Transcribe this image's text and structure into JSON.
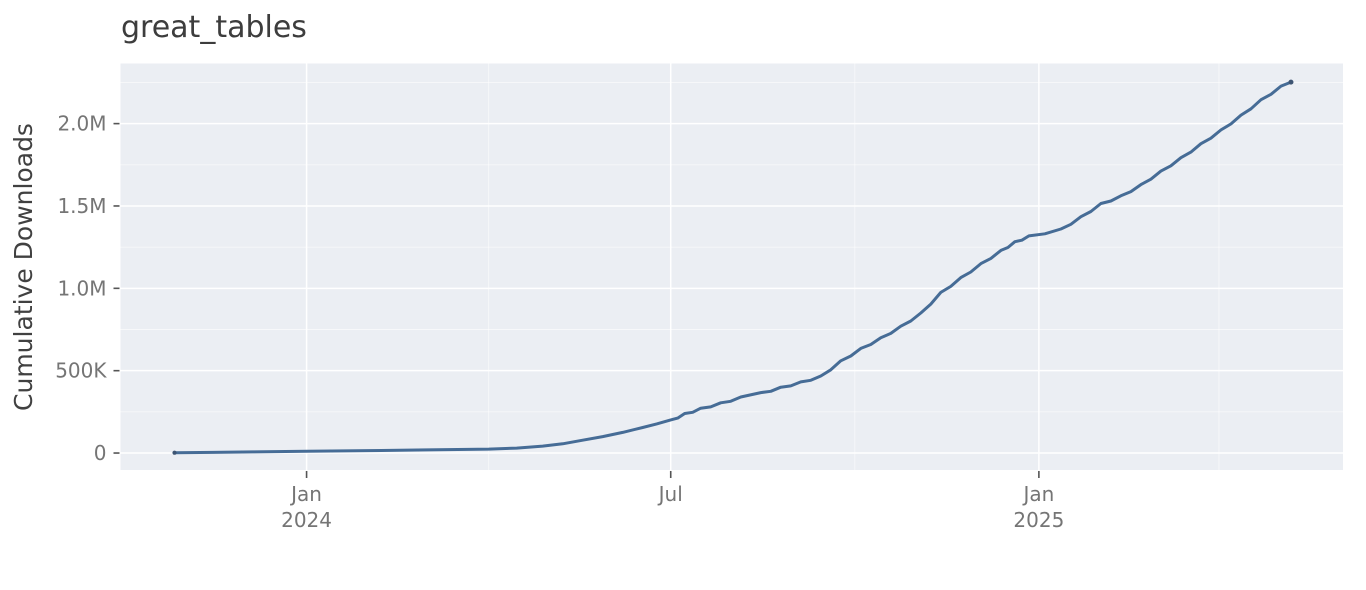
{
  "page": {
    "background": "#ffffff"
  },
  "chart_data": {
    "type": "line",
    "title": "great_tables",
    "xlabel": "",
    "ylabel": "Cumulative Downloads",
    "legend": "none",
    "grid": "major and minor white gridlines on gray panel",
    "colors": {
      "panel_background": "#ebeef3",
      "major_gridline": "#ffffff",
      "minor_gridline": "rgba(255,255,255,0.6)",
      "line": "#466c96",
      "endpoint_dot": "#3d5472",
      "title_text": "#3d3d3d",
      "axis_title_text": "#414141",
      "tick_label_text": "#757575",
      "tick_mark": "#555555"
    },
    "x_domain": [
      "2023-09-30",
      "2025-06-02"
    ],
    "y_domain": [
      -103000,
      2365000
    ],
    "y_ticks": [
      {
        "value": 0,
        "label": "0"
      },
      {
        "value": 500000,
        "label": "500K"
      },
      {
        "value": 1000000,
        "label": "1.0M"
      },
      {
        "value": 1500000,
        "label": "1.5M"
      },
      {
        "value": 2000000,
        "label": "2.0M"
      }
    ],
    "y_minor_ticks": [
      250000,
      750000,
      1250000,
      1750000,
      2250000
    ],
    "x_ticks": [
      {
        "date": "2024-01-01",
        "label": "Jan",
        "sublabel": "2024"
      },
      {
        "date": "2024-07-01",
        "label": "Jul",
        "sublabel": ""
      },
      {
        "date": "2025-01-01",
        "label": "Jan",
        "sublabel": "2025"
      }
    ],
    "x_minor_ticks": [
      "2024-04-01",
      "2024-10-01",
      "2025-04-01"
    ],
    "series": [
      {
        "name": "great_tables",
        "points": [
          [
            "2023-10-27",
            2000
          ],
          [
            "2023-11-15",
            4000
          ],
          [
            "2023-12-05",
            7000
          ],
          [
            "2024-01-01",
            11000
          ],
          [
            "2024-02-01",
            15000
          ],
          [
            "2024-03-01",
            19000
          ],
          [
            "2024-04-01",
            24000
          ],
          [
            "2024-04-15",
            30000
          ],
          [
            "2024-04-28",
            42000
          ],
          [
            "2024-05-08",
            56000
          ],
          [
            "2024-05-18",
            78000
          ],
          [
            "2024-05-28",
            100000
          ],
          [
            "2024-06-07",
            125000
          ],
          [
            "2024-06-17",
            155000
          ],
          [
            "2024-06-24",
            177000
          ],
          [
            "2024-07-01",
            201000
          ],
          [
            "2024-07-08",
            240000
          ],
          [
            "2024-07-16",
            272000
          ],
          [
            "2024-07-26",
            305000
          ],
          [
            "2024-08-05",
            340000
          ],
          [
            "2024-08-15",
            367000
          ],
          [
            "2024-08-25",
            400000
          ],
          [
            "2024-09-04",
            432000
          ],
          [
            "2024-09-14",
            468000
          ],
          [
            "2024-09-24",
            560000
          ],
          [
            "2024-10-04",
            635000
          ],
          [
            "2024-10-14",
            700000
          ],
          [
            "2024-10-24",
            770000
          ],
          [
            "2024-11-03",
            850000
          ],
          [
            "2024-11-13",
            975000
          ],
          [
            "2024-11-23",
            1065000
          ],
          [
            "2024-12-03",
            1150000
          ],
          [
            "2024-12-13",
            1230000
          ],
          [
            "2024-12-20",
            1283000
          ],
          [
            "2024-12-27",
            1318000
          ],
          [
            "2025-01-04",
            1331000
          ],
          [
            "2025-01-12",
            1360000
          ],
          [
            "2025-01-22",
            1435000
          ],
          [
            "2025-02-01",
            1515000
          ],
          [
            "2025-02-11",
            1562000
          ],
          [
            "2025-02-21",
            1630000
          ],
          [
            "2025-03-03",
            1712000
          ],
          [
            "2025-03-13",
            1793000
          ],
          [
            "2025-03-23",
            1878000
          ],
          [
            "2025-04-02",
            1962000
          ],
          [
            "2025-04-12",
            2052000
          ],
          [
            "2025-04-22",
            2145000
          ],
          [
            "2025-05-02",
            2228000
          ],
          [
            "2025-05-07",
            2252000
          ]
        ]
      }
    ]
  }
}
